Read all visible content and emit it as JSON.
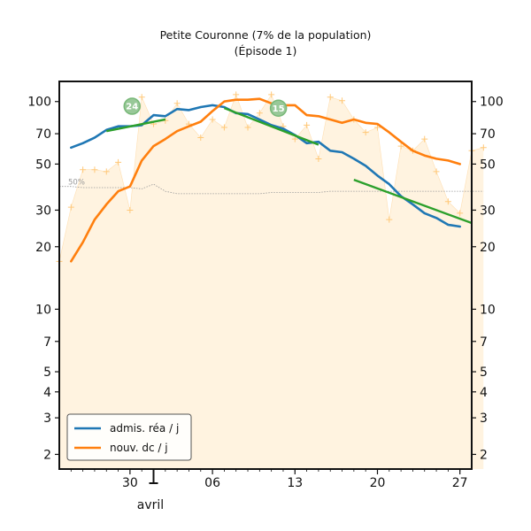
{
  "chart_data": {
    "type": "line",
    "title": "Petite Couronne (7% de la population)",
    "subtitle": "(Épisode 1)",
    "y_scale": "log",
    "ylim": [
      1.7,
      125
    ],
    "xlim": [
      "2020-03-24",
      "2020-04-28"
    ],
    "y_ticks": [
      2,
      3,
      4,
      5,
      7,
      10,
      20,
      30,
      50,
      70,
      100
    ],
    "y_tick_labels": [
      "2",
      "3",
      "4",
      "5",
      "7",
      "10",
      "20",
      "30",
      "50",
      "70",
      "100"
    ],
    "x_ticks": [
      "2020-03-30",
      "2020-04-06",
      "2020-04-13",
      "2020-04-20",
      "2020-04-27"
    ],
    "x_tick_labels": [
      "30",
      "06",
      "13",
      "20",
      "27"
    ],
    "month_label": "avril",
    "month_start": "2020-04-01",
    "reference_label": "50%",
    "legend": {
      "placement": "lower-left"
    },
    "series": [
      {
        "name": "admis. réa / j",
        "color": "#1f77b4",
        "start": "2020-03-25",
        "values": [
          60,
          63,
          67,
          73,
          76,
          76,
          77,
          86,
          85,
          92,
          91,
          94,
          96,
          94,
          88,
          87,
          82,
          77,
          74,
          69,
          63,
          64,
          58,
          57,
          53,
          49,
          44,
          40,
          35,
          32,
          29,
          27.5,
          25.5,
          25
        ]
      },
      {
        "name": "nouv. dc / j",
        "color": "#ff7f0e",
        "start": "2020-03-25",
        "values": [
          17,
          21,
          27,
          32,
          37,
          39,
          52,
          61,
          66,
          72,
          76,
          80,
          90,
          100,
          102,
          102,
          103,
          98,
          96,
          96,
          86,
          85,
          82,
          79,
          82,
          79,
          78,
          71,
          64,
          58,
          55,
          53,
          52,
          50
        ]
      }
    ],
    "daily_values": {
      "color": "#ffc878",
      "start": "2020-03-24",
      "values": [
        17,
        31,
        47,
        47,
        46,
        51,
        30,
        105,
        78,
        81,
        98,
        78,
        67,
        82,
        75,
        108,
        75,
        88,
        108,
        76,
        66,
        77,
        53,
        105,
        101,
        82,
        71,
        75,
        27,
        61,
        58,
        66,
        46,
        33,
        29,
        58,
        60
      ]
    },
    "reference_line": {
      "color": "#999999",
      "start": "2020-03-24",
      "values": [
        39,
        39,
        38.5,
        38.5,
        38.5,
        38.5,
        38.5,
        38,
        40,
        37,
        36,
        36,
        36,
        36,
        36,
        36,
        36,
        36,
        36.5,
        36.5,
        36.5,
        36.5,
        36.5,
        37,
        37,
        37,
        37,
        37,
        37,
        37,
        37,
        37,
        37,
        37,
        37,
        37,
        37
      ]
    },
    "trend_lines": [
      {
        "label": "24",
        "color": "#2ca02c",
        "from": "2020-03-28",
        "to": "2020-04-02",
        "y_from": 72,
        "y_to": 82
      },
      {
        "label": "15",
        "color": "#2ca02c",
        "from": "2020-04-07",
        "to": "2020-04-15",
        "y_from": 93,
        "y_to": 62
      },
      {
        "label": "",
        "color": "#2ca02c",
        "from": "2020-04-18",
        "to": "2020-04-28",
        "y_from": 42,
        "y_to": 26
      }
    ]
  }
}
